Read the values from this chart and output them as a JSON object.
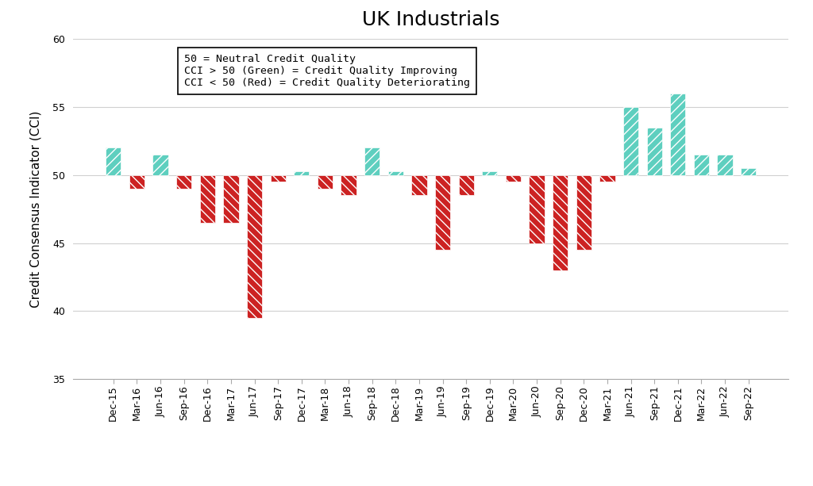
{
  "title": "UK Industrials",
  "ylabel": "Credit Consensus Indicator (CCI)",
  "ylim": [
    35,
    60
  ],
  "yticks": [
    35,
    40,
    45,
    50,
    55,
    60
  ],
  "baseline": 50,
  "annotation_lines": [
    "50 = Neutral Credit Quality",
    "CCI > 50 (Green) = Credit Quality Improving",
    "CCI < 50 (Red) = Credit Quality Deteriorating"
  ],
  "categories": [
    "Dec-15",
    "Mar-16",
    "Jun-16",
    "Sep-16",
    "Dec-16",
    "Mar-17",
    "Jun-17",
    "Sep-17",
    "Dec-17",
    "Mar-18",
    "Jun-18",
    "Sep-18",
    "Dec-18",
    "Mar-19",
    "Jun-19",
    "Sep-19",
    "Dec-19",
    "Mar-20",
    "Jun-20",
    "Sep-20",
    "Dec-20",
    "Mar-21",
    "Jun-21",
    "Sep-21",
    "Dec-21",
    "Mar-22",
    "Jun-22",
    "Sep-22"
  ],
  "cci_values": [
    52.0,
    49.0,
    51.5,
    49.0,
    46.5,
    46.5,
    39.5,
    49.5,
    50.3,
    49.0,
    48.5,
    52.0,
    50.3,
    48.5,
    44.5,
    48.5,
    50.3,
    49.5,
    45.0,
    43.0,
    44.5,
    49.5,
    55.0,
    53.5,
    56.0,
    51.5,
    51.5,
    50.5
  ],
  "upgrade_color": "#5ecfbf",
  "downgrade_color": "#cc2222",
  "background_color": "#ffffff",
  "title_fontsize": 18,
  "label_fontsize": 11,
  "tick_fontsize": 9,
  "annotation_fontsize": 9.5,
  "legend_fontsize": 10,
  "bar_width": 0.65
}
